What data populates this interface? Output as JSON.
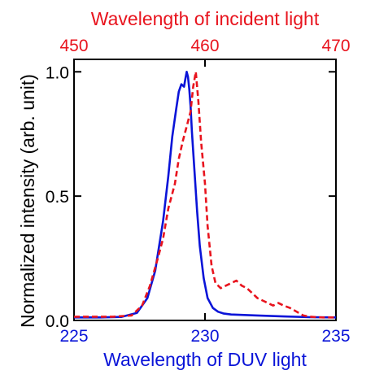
{
  "chart_data": {
    "type": "line",
    "xlabel_bottom": "Wavelength of DUV light",
    "xlabel_top": "Wavelength of incident light",
    "ylabel": "Normalized intensity (arb. unit)",
    "x_bottom_range": [
      225,
      235
    ],
    "x_top_range": [
      450,
      470
    ],
    "y_range": [
      0,
      1.05
    ],
    "x_bottom_ticks": [
      "225",
      "230",
      "235"
    ],
    "x_top_ticks": [
      "450",
      "460",
      "470"
    ],
    "y_ticks": [
      "0.0",
      "0.5",
      "1.0"
    ],
    "y_tick_values": [
      0,
      0.5,
      1.0
    ],
    "grid": false,
    "series": [
      {
        "axis": "bottom",
        "color": "#0a14d8",
        "style": "solid",
        "x": [
          225,
          226,
          226.8,
          227.4,
          227.8,
          228.1,
          228.4,
          228.6,
          228.75,
          228.9,
          229.0,
          229.1,
          229.2,
          229.25,
          229.3,
          229.35,
          229.4,
          229.45,
          229.5,
          229.6,
          229.7,
          229.8,
          229.95,
          230.1,
          230.3,
          230.5,
          230.7,
          231.0,
          232,
          233,
          234,
          235
        ],
        "y": [
          0.012,
          0.012,
          0.014,
          0.03,
          0.09,
          0.2,
          0.4,
          0.58,
          0.74,
          0.85,
          0.92,
          0.95,
          0.94,
          0.97,
          1.0,
          0.98,
          0.93,
          0.86,
          0.76,
          0.6,
          0.44,
          0.3,
          0.17,
          0.09,
          0.05,
          0.035,
          0.028,
          0.024,
          0.02,
          0.016,
          0.013,
          0.012
        ]
      },
      {
        "axis": "top",
        "color": "#e8141e",
        "style": "dashed",
        "x": [
          450,
          453,
          454.4,
          455.2,
          455.8,
          456.4,
          456.8,
          457.2,
          457.7,
          458.0,
          458.3,
          458.6,
          458.9,
          459.1,
          459.3,
          459.5,
          459.7,
          460.0,
          460.2,
          460.5,
          460.8,
          461.2,
          461.6,
          462.0,
          462.4,
          462.8,
          463.2,
          463.6,
          464.0,
          464.4,
          464.8,
          465.2,
          465.6,
          466.0,
          466.5,
          467.0,
          467.5,
          468.0,
          468.5,
          469.0,
          470
        ],
        "y": [
          0.015,
          0.015,
          0.02,
          0.06,
          0.14,
          0.25,
          0.33,
          0.45,
          0.55,
          0.65,
          0.72,
          0.78,
          0.84,
          0.94,
          1.0,
          0.88,
          0.72,
          0.55,
          0.38,
          0.22,
          0.15,
          0.13,
          0.14,
          0.15,
          0.16,
          0.14,
          0.13,
          0.11,
          0.09,
          0.08,
          0.07,
          0.06,
          0.07,
          0.06,
          0.05,
          0.035,
          0.02,
          0.015,
          0.013,
          0.012,
          0.012
        ]
      }
    ]
  }
}
